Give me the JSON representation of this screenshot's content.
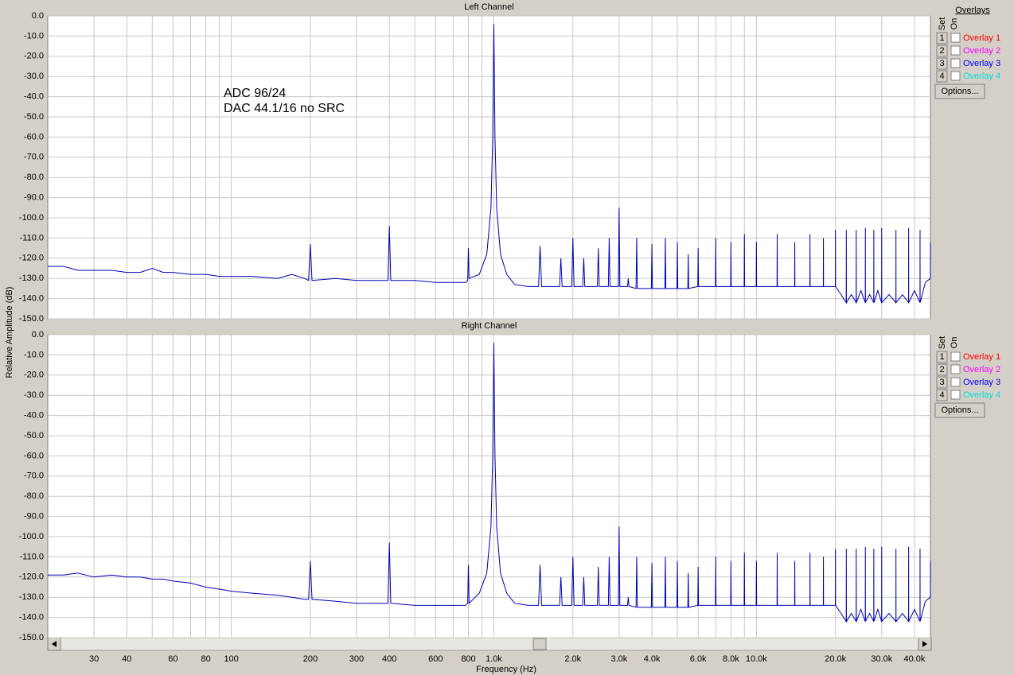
{
  "chart_data": [
    {
      "type": "line",
      "title": "Left Channel",
      "ylabel": "Relative Amplitude (dB)",
      "annotations": [
        "ADC 96/24",
        "DAC 44.1/16 no SRC"
      ],
      "log_x": true,
      "grid": true,
      "xlim": [
        20,
        46000
      ],
      "ylim": [
        -150,
        0
      ],
      "xgrid": [
        30,
        40,
        50,
        60,
        70,
        80,
        90,
        100,
        200,
        300,
        400,
        500,
        600,
        700,
        800,
        900,
        1000,
        2000,
        3000,
        4000,
        5000,
        6000,
        7000,
        8000,
        9000,
        10000,
        20000,
        30000,
        40000
      ],
      "yticks": [
        {
          "value": 0,
          "label": "0.0"
        },
        {
          "value": -10,
          "label": "-10.0"
        },
        {
          "value": -20,
          "label": "-20.0"
        },
        {
          "value": -30,
          "label": "-30.0"
        },
        {
          "value": -40,
          "label": "-40.0"
        },
        {
          "value": -50,
          "label": "-50.0"
        },
        {
          "value": -60,
          "label": "-60.0"
        },
        {
          "value": -70,
          "label": "-70.0"
        },
        {
          "value": -80,
          "label": "-80.0"
        },
        {
          "value": -90,
          "label": "-90.0"
        },
        {
          "value": -100,
          "label": "-100.0"
        },
        {
          "value": -110,
          "label": "-110.0"
        },
        {
          "value": -120,
          "label": "-120.0"
        },
        {
          "value": -130,
          "label": "-130.0"
        },
        {
          "value": -140,
          "label": "-140.0"
        },
        {
          "value": -150,
          "label": "-150.0"
        }
      ],
      "x": [
        20,
        23,
        26,
        30,
        35,
        40,
        45,
        50,
        55,
        60,
        70,
        80,
        90,
        100,
        120,
        150,
        170,
        190,
        197,
        200,
        203,
        250,
        300,
        350,
        395,
        400,
        405,
        500,
        600,
        700,
        780,
        795,
        800,
        805,
        880,
        940,
        975,
        990,
        1000,
        1010,
        1025,
        1060,
        1120,
        1200,
        1350,
        1480,
        1500,
        1520,
        1780,
        1800,
        1820,
        1980,
        2000,
        2020,
        2180,
        2200,
        2220,
        2480,
        2500,
        2520,
        2730,
        2750,
        2770,
        2980,
        3000,
        3020,
        3230,
        3250,
        3270,
        3480,
        3500,
        3520,
        3980,
        4000,
        4020,
        4480,
        4500,
        4520,
        4980,
        5000,
        5020,
        5480,
        5500,
        5520,
        5980,
        6000,
        6020,
        6980,
        7000,
        7020,
        7980,
        8000,
        8020,
        8980,
        9000,
        9020,
        9980,
        10000,
        10020,
        11980,
        12000,
        12020,
        13980,
        14000,
        14020,
        15980,
        16000,
        16020,
        17980,
        18000,
        18020,
        19980,
        20000,
        20020,
        21000,
        21980,
        22000,
        22020,
        23000,
        23980,
        24000,
        24020,
        25000,
        25980,
        26000,
        26020,
        27000,
        27980,
        28000,
        28020,
        29000,
        29980,
        30000,
        30020,
        32000,
        33980,
        34000,
        34020,
        36000,
        37980,
        38000,
        38020,
        40000,
        41980,
        42000,
        42020,
        44000,
        45980,
        46000
      ],
      "series": [
        {
          "color": "#0000b4",
          "values": [
            -124,
            -124,
            -126,
            -126,
            -126,
            -127,
            -127,
            -125,
            -127,
            -127,
            -128,
            -128,
            -129,
            -129,
            -129,
            -130,
            -128,
            -130,
            -131,
            -113,
            -131,
            -130,
            -131,
            -131,
            -131,
            -104,
            -131,
            -131,
            -132,
            -132,
            -132,
            -131,
            -115,
            -130,
            -128,
            -118,
            -95,
            -60,
            -4,
            -60,
            -95,
            -118,
            -128,
            -133,
            -134,
            -134,
            -114,
            -134,
            -134,
            -120,
            -134,
            -134,
            -110,
            -134,
            -134,
            -120,
            -134,
            -134,
            -115,
            -134,
            -134,
            -110,
            -134,
            -134,
            -95,
            -134,
            -134,
            -130,
            -134,
            -135,
            -110,
            -135,
            -135,
            -113,
            -135,
            -135,
            -110,
            -135,
            -135,
            -112,
            -135,
            -135,
            -118,
            -135,
            -134,
            -115,
            -134,
            -134,
            -110,
            -134,
            -134,
            -112,
            -134,
            -134,
            -108,
            -134,
            -134,
            -112,
            -134,
            -134,
            -108,
            -134,
            -134,
            -112,
            -134,
            -134,
            -108,
            -134,
            -134,
            -110,
            -134,
            -134,
            -106,
            -134,
            -138,
            -142,
            -106,
            -142,
            -138,
            -142,
            -106,
            -142,
            -136,
            -142,
            -105,
            -142,
            -138,
            -142,
            -106,
            -142,
            -136,
            -142,
            -105,
            -142,
            -138,
            -142,
            -106,
            -142,
            -138,
            -142,
            -105,
            -142,
            -136,
            -142,
            -106,
            -142,
            -132,
            -130,
            -112
          ]
        }
      ]
    },
    {
      "type": "line",
      "title": "Right Channel",
      "xlabel": "Frequency (Hz)",
      "log_x": true,
      "grid": true,
      "xlim": [
        20,
        46000
      ],
      "ylim": [
        -150,
        0
      ],
      "xticks": [
        30,
        40,
        60,
        80,
        100,
        200,
        300,
        400,
        600,
        800,
        {
          "value": 1000,
          "label": "1.0k"
        },
        {
          "value": 2000,
          "label": "2.0k"
        },
        {
          "value": 3000,
          "label": "3.0k"
        },
        {
          "value": 4000,
          "label": "4.0k"
        },
        {
          "value": 6000,
          "label": "6.0k"
        },
        {
          "value": 8000,
          "label": "8.0k"
        },
        {
          "value": 10000,
          "label": "10.0k"
        },
        {
          "value": 20000,
          "label": "20.0k"
        },
        {
          "value": 30000,
          "label": "30.0k"
        },
        {
          "value": 40000,
          "label": "40.0k"
        }
      ],
      "xgrid": [
        50,
        70,
        90,
        500,
        700,
        900,
        5000,
        7000,
        9000
      ],
      "yticks": [
        {
          "value": 0,
          "label": "0.0"
        },
        {
          "value": -10,
          "label": "-10.0"
        },
        {
          "value": -20,
          "label": "-20.0"
        },
        {
          "value": -30,
          "label": "-30.0"
        },
        {
          "value": -40,
          "label": "-40.0"
        },
        {
          "value": -50,
          "label": "-50.0"
        },
        {
          "value": -60,
          "label": "-60.0"
        },
        {
          "value": -70,
          "label": "-70.0"
        },
        {
          "value": -80,
          "label": "-80.0"
        },
        {
          "value": -90,
          "label": "-90.0"
        },
        {
          "value": -100,
          "label": "-100.0"
        },
        {
          "value": -110,
          "label": "-110.0"
        },
        {
          "value": -120,
          "label": "-120.0"
        },
        {
          "value": -130,
          "label": "-130.0"
        },
        {
          "value": -140,
          "label": "-140.0"
        },
        {
          "value": -150,
          "label": "-150.0"
        }
      ],
      "x": [
        20,
        23,
        26,
        30,
        35,
        40,
        45,
        50,
        55,
        60,
        70,
        80,
        90,
        100,
        120,
        150,
        170,
        190,
        197,
        200,
        203,
        250,
        300,
        350,
        395,
        400,
        405,
        500,
        600,
        700,
        780,
        795,
        800,
        805,
        880,
        940,
        975,
        990,
        1000,
        1010,
        1025,
        1060,
        1120,
        1200,
        1350,
        1480,
        1500,
        1520,
        1780,
        1800,
        1820,
        1980,
        2000,
        2020,
        2180,
        2200,
        2220,
        2480,
        2500,
        2520,
        2730,
        2750,
        2770,
        2980,
        3000,
        3020,
        3230,
        3250,
        3270,
        3480,
        3500,
        3520,
        3980,
        4000,
        4020,
        4480,
        4500,
        4520,
        4980,
        5000,
        5020,
        5480,
        5500,
        5520,
        5980,
        6000,
        6020,
        6980,
        7000,
        7020,
        7980,
        8000,
        8020,
        8980,
        9000,
        9020,
        9980,
        10000,
        10020,
        11980,
        12000,
        12020,
        13980,
        14000,
        14020,
        15980,
        16000,
        16020,
        17980,
        18000,
        18020,
        19980,
        20000,
        20020,
        21000,
        21980,
        22000,
        22020,
        23000,
        23980,
        24000,
        24020,
        25000,
        25980,
        26000,
        26020,
        27000,
        27980,
        28000,
        28020,
        29000,
        29980,
        30000,
        30020,
        32000,
        33980,
        34000,
        34020,
        36000,
        37980,
        38000,
        38020,
        40000,
        41980,
        42000,
        42020,
        44000,
        45980,
        46000
      ],
      "series": [
        {
          "color": "#0000b4",
          "values": [
            -119,
            -119,
            -118,
            -120,
            -119,
            -120,
            -120,
            -121,
            -121,
            -122,
            -123,
            -125,
            -126,
            -127,
            -128,
            -129,
            -130,
            -131,
            -131,
            -112,
            -131,
            -132,
            -133,
            -133,
            -133,
            -103,
            -133,
            -134,
            -134,
            -134,
            -134,
            -133,
            -114,
            -133,
            -128,
            -118,
            -95,
            -60,
            -4,
            -60,
            -95,
            -118,
            -128,
            -133,
            -134,
            -134,
            -114,
            -134,
            -134,
            -120,
            -134,
            -134,
            -110,
            -134,
            -134,
            -120,
            -134,
            -134,
            -115,
            -134,
            -134,
            -110,
            -134,
            -134,
            -95,
            -134,
            -134,
            -130,
            -134,
            -135,
            -110,
            -135,
            -135,
            -113,
            -135,
            -135,
            -110,
            -135,
            -135,
            -112,
            -135,
            -135,
            -118,
            -135,
            -134,
            -115,
            -134,
            -134,
            -110,
            -134,
            -134,
            -112,
            -134,
            -134,
            -108,
            -134,
            -134,
            -112,
            -134,
            -134,
            -108,
            -134,
            -134,
            -112,
            -134,
            -134,
            -108,
            -134,
            -134,
            -110,
            -134,
            -134,
            -106,
            -134,
            -138,
            -142,
            -106,
            -142,
            -138,
            -142,
            -106,
            -142,
            -136,
            -142,
            -105,
            -142,
            -138,
            -142,
            -106,
            -142,
            -136,
            -142,
            -105,
            -142,
            -138,
            -142,
            -106,
            -142,
            -138,
            -142,
            -105,
            -142,
            -136,
            -142,
            -106,
            -142,
            -132,
            -130,
            -112
          ]
        }
      ]
    }
  ],
  "overlays": {
    "title": "Overlays",
    "set": "Set",
    "on": "On",
    "options": "Options...",
    "items": [
      {
        "number": "1",
        "label": "Overlay 1",
        "color": "#ff0000"
      },
      {
        "number": "2",
        "label": "Overlay 2",
        "color": "#ff00ff"
      },
      {
        "number": "3",
        "label": "Overlay 3",
        "color": "#0000ff"
      },
      {
        "number": "4",
        "label": "Overlay 4",
        "color": "#00e0e0"
      }
    ]
  }
}
